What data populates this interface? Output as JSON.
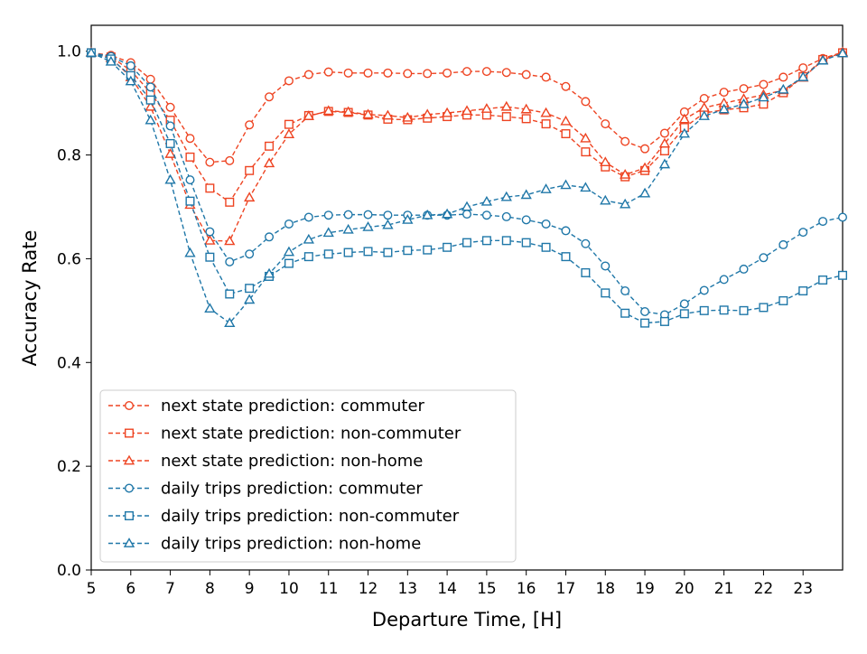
{
  "chart_data": {
    "type": "line",
    "title": "",
    "xlabel": "Departure Time, [H]",
    "ylabel": "Accuracy Rate",
    "xlim": [
      5,
      24
    ],
    "ylim": [
      0,
      1.05
    ],
    "xticks": [
      5,
      6,
      7,
      8,
      9,
      10,
      11,
      12,
      13,
      14,
      15,
      16,
      17,
      18,
      19,
      20,
      21,
      22,
      23
    ],
    "yticks": [
      0.0,
      0.2,
      0.4,
      0.6,
      0.8,
      1.0
    ],
    "ytick_labels": [
      "0.0",
      "0.2",
      "0.4",
      "0.6",
      "0.8",
      "1.0"
    ],
    "grid": false,
    "legend_position": "lower-left",
    "x": [
      5.0,
      5.5,
      6.0,
      6.5,
      7.0,
      7.5,
      8.0,
      8.5,
      9.0,
      9.5,
      10.0,
      10.5,
      11.0,
      11.5,
      12.0,
      12.5,
      13.0,
      13.5,
      14.0,
      14.5,
      15.0,
      15.5,
      16.0,
      16.5,
      17.0,
      17.5,
      18.0,
      18.5,
      19.0,
      19.5,
      20.0,
      20.5,
      21.0,
      21.5,
      22.0,
      22.5,
      23.0,
      23.5,
      24.0
    ],
    "series": [
      {
        "name": "next state prediction: commuter",
        "color": "#ee4422",
        "marker": "circle",
        "values": [
          0.997,
          0.992,
          0.978,
          0.946,
          0.892,
          0.832,
          0.786,
          0.789,
          0.858,
          0.912,
          0.943,
          0.955,
          0.96,
          0.958,
          0.958,
          0.958,
          0.957,
          0.957,
          0.958,
          0.961,
          0.961,
          0.959,
          0.955,
          0.95,
          0.932,
          0.903,
          0.86,
          0.826,
          0.812,
          0.842,
          0.883,
          0.909,
          0.921,
          0.928,
          0.936,
          0.95,
          0.968,
          0.986,
          0.998
        ]
      },
      {
        "name": "next state prediction: non-commuter",
        "color": "#ee4422",
        "marker": "square",
        "values": [
          0.997,
          0.989,
          0.963,
          0.92,
          0.867,
          0.796,
          0.736,
          0.709,
          0.77,
          0.817,
          0.859,
          0.876,
          0.884,
          0.882,
          0.877,
          0.869,
          0.868,
          0.871,
          0.874,
          0.877,
          0.877,
          0.874,
          0.87,
          0.86,
          0.841,
          0.806,
          0.777,
          0.758,
          0.77,
          0.808,
          0.853,
          0.881,
          0.887,
          0.891,
          0.898,
          0.92,
          0.951,
          0.984,
          0.997
        ]
      },
      {
        "name": "next state prediction: non-home",
        "color": "#ee4422",
        "marker": "triangle",
        "values": [
          0.998,
          0.987,
          0.95,
          0.893,
          0.802,
          0.704,
          0.635,
          0.634,
          0.718,
          0.784,
          0.84,
          0.875,
          0.885,
          0.883,
          0.878,
          0.876,
          0.872,
          0.878,
          0.881,
          0.885,
          0.889,
          0.893,
          0.888,
          0.881,
          0.865,
          0.832,
          0.786,
          0.762,
          0.775,
          0.822,
          0.869,
          0.891,
          0.9,
          0.908,
          0.916,
          0.925,
          0.949,
          0.983,
          0.998
        ]
      },
      {
        "name": "daily trips prediction: commuter",
        "color": "#1f77a8",
        "marker": "circle",
        "values": [
          0.997,
          0.99,
          0.972,
          0.931,
          0.856,
          0.752,
          0.652,
          0.594,
          0.609,
          0.642,
          0.667,
          0.68,
          0.684,
          0.685,
          0.685,
          0.684,
          0.684,
          0.684,
          0.684,
          0.686,
          0.684,
          0.681,
          0.675,
          0.667,
          0.654,
          0.629,
          0.586,
          0.538,
          0.498,
          0.492,
          0.513,
          0.539,
          0.56,
          0.58,
          0.602,
          0.627,
          0.651,
          0.672,
          0.68
        ]
      },
      {
        "name": "daily trips prediction: non-commuter",
        "color": "#1f77a8",
        "marker": "square",
        "values": [
          0.997,
          0.985,
          0.953,
          0.906,
          0.822,
          0.711,
          0.603,
          0.532,
          0.543,
          0.566,
          0.591,
          0.604,
          0.609,
          0.612,
          0.614,
          0.612,
          0.616,
          0.617,
          0.622,
          0.631,
          0.635,
          0.635,
          0.631,
          0.622,
          0.604,
          0.573,
          0.534,
          0.495,
          0.476,
          0.479,
          0.494,
          0.5,
          0.501,
          0.5,
          0.506,
          0.519,
          0.538,
          0.559,
          0.568
        ]
      },
      {
        "name": "daily trips prediction: non-home",
        "color": "#1f77a8",
        "marker": "triangle",
        "values": [
          0.997,
          0.98,
          0.942,
          0.867,
          0.752,
          0.611,
          0.504,
          0.476,
          0.521,
          0.571,
          0.613,
          0.637,
          0.65,
          0.656,
          0.661,
          0.665,
          0.675,
          0.684,
          0.686,
          0.7,
          0.71,
          0.719,
          0.723,
          0.734,
          0.742,
          0.737,
          0.712,
          0.705,
          0.726,
          0.782,
          0.841,
          0.875,
          0.888,
          0.898,
          0.911,
          0.926,
          0.95,
          0.982,
          0.996
        ]
      }
    ]
  }
}
